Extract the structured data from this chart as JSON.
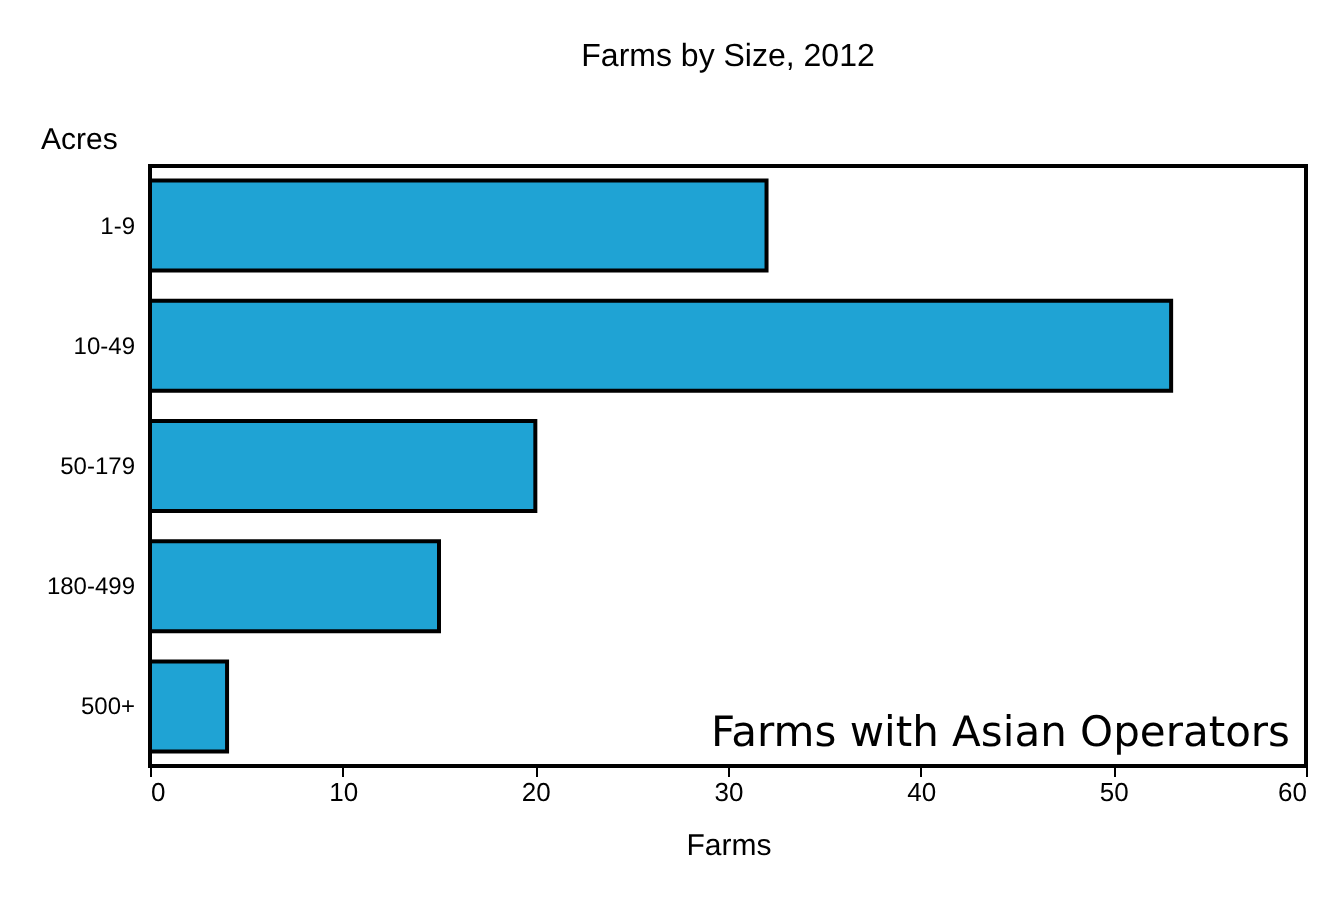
{
  "chart_data": {
    "type": "bar",
    "orientation": "horizontal",
    "title": "Farms by Size, 2012",
    "xlabel": "Farms",
    "ylabel": "Acres",
    "categories": [
      "1-9",
      "10-49",
      "50-179",
      "180-499",
      "500+"
    ],
    "values": [
      32,
      53,
      20,
      15,
      4
    ],
    "color": "#1fa3d4",
    "xlim": [
      0,
      60
    ],
    "xticks": [
      0,
      10,
      20,
      30,
      40,
      50,
      60
    ],
    "grid": false,
    "annotations": [
      "Farms with Asian Operators"
    ]
  }
}
